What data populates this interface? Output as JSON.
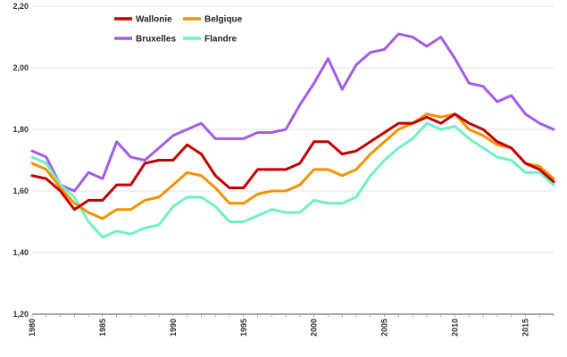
{
  "chart_data": {
    "type": "line",
    "title": "",
    "xlabel": "",
    "ylabel": "",
    "x": [
      1980,
      1981,
      1982,
      1983,
      1984,
      1985,
      1986,
      1987,
      1988,
      1989,
      1990,
      1991,
      1992,
      1993,
      1994,
      1995,
      1996,
      1997,
      1998,
      1999,
      2000,
      2001,
      2002,
      2003,
      2004,
      2005,
      2006,
      2007,
      2008,
      2009,
      2010,
      2011,
      2012,
      2013,
      2014,
      2015,
      2016,
      2017
    ],
    "x_ticks": [
      "1980",
      "1985",
      "1990",
      "1995",
      "2000",
      "2005",
      "2010",
      "2015"
    ],
    "y_ticks": [
      "1,20",
      "1,40",
      "1,60",
      "1,80",
      "2,00",
      "2,20"
    ],
    "ylim": [
      1.2,
      2.2
    ],
    "xlim": [
      1980,
      2017
    ],
    "grid": "horizontal",
    "legend_position": "top-left",
    "series": [
      {
        "name": "Wallonie",
        "color": "#c00000",
        "values": [
          1.65,
          1.64,
          1.6,
          1.54,
          1.57,
          1.57,
          1.62,
          1.62,
          1.69,
          1.7,
          1.7,
          1.75,
          1.72,
          1.65,
          1.61,
          1.61,
          1.67,
          1.67,
          1.67,
          1.69,
          1.76,
          1.76,
          1.72,
          1.73,
          1.76,
          1.79,
          1.82,
          1.82,
          1.84,
          1.82,
          1.85,
          1.82,
          1.8,
          1.76,
          1.74,
          1.69,
          1.67,
          1.63
        ]
      },
      {
        "name": "Belgique",
        "color": "#f39200",
        "values": [
          1.69,
          1.67,
          1.61,
          1.56,
          1.53,
          1.51,
          1.54,
          1.54,
          1.57,
          1.58,
          1.62,
          1.66,
          1.65,
          1.61,
          1.56,
          1.56,
          1.59,
          1.6,
          1.6,
          1.62,
          1.67,
          1.67,
          1.65,
          1.67,
          1.72,
          1.76,
          1.8,
          1.82,
          1.85,
          1.84,
          1.85,
          1.8,
          1.78,
          1.75,
          1.74,
          1.69,
          1.68,
          1.64
        ]
      },
      {
        "name": "Bruxelles",
        "color": "#a35ce6",
        "values": [
          1.73,
          1.71,
          1.62,
          1.6,
          1.66,
          1.64,
          1.76,
          1.71,
          1.7,
          1.74,
          1.78,
          1.8,
          1.82,
          1.77,
          1.77,
          1.77,
          1.79,
          1.79,
          1.8,
          1.88,
          1.95,
          2.03,
          1.93,
          2.01,
          2.05,
          2.06,
          2.11,
          2.1,
          2.07,
          2.1,
          2.03,
          1.95,
          1.94,
          1.89,
          1.91,
          1.85,
          1.82,
          1.8
        ]
      },
      {
        "name": "Flandre",
        "color": "#6ff0c8",
        "values": [
          1.71,
          1.69,
          1.62,
          1.58,
          1.5,
          1.45,
          1.47,
          1.46,
          1.48,
          1.49,
          1.55,
          1.58,
          1.58,
          1.55,
          1.5,
          1.5,
          1.52,
          1.54,
          1.53,
          1.53,
          1.57,
          1.56,
          1.56,
          1.58,
          1.65,
          1.7,
          1.74,
          1.77,
          1.82,
          1.8,
          1.81,
          1.77,
          1.74,
          1.71,
          1.7,
          1.66,
          1.66,
          1.62
        ]
      }
    ]
  }
}
